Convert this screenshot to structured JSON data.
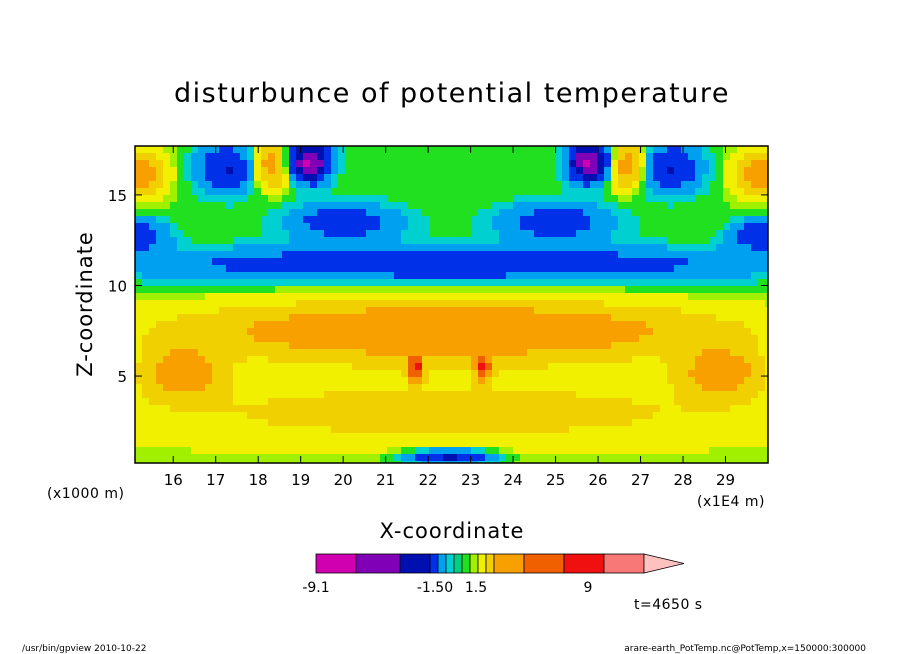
{
  "chart_data": {
    "type": "heatmap",
    "title": "disturbunce of potential temperature",
    "xlabel": "X-coordinate",
    "ylabel": "Z-coordinate",
    "x_unit_left": "(x1000 m)",
    "x_unit_right": "(x1E4 m)",
    "xlim": [
      15.1,
      30
    ],
    "ylim": [
      0.2,
      17.7
    ],
    "xticks": [
      16,
      17,
      18,
      19,
      20,
      21,
      22,
      23,
      24,
      25,
      26,
      27,
      28,
      29
    ],
    "yticks": [
      5,
      10,
      15
    ],
    "time_label": "t=4650 s",
    "colorbar": {
      "colors": [
        "#d000b0",
        "#8000b8",
        "#0010b0",
        "#0030e8",
        "#00a0f0",
        "#00d0d0",
        "#00d080",
        "#20e020",
        "#a0f000",
        "#f0f000",
        "#f0d000",
        "#f8a000",
        "#f06000",
        "#f01010",
        "#f87878",
        "#ffc0c0"
      ],
      "tick_labels": [
        "-9.1",
        "-1.50",
        "1.5",
        "9"
      ]
    },
    "field_levels": [
      {
        "level": 9,
        "color": "#ffc0c0"
      },
      {
        "level": 7,
        "color": "#f87878"
      },
      {
        "level": 5,
        "color": "#f01010"
      },
      {
        "level": 3,
        "color": "#f06000"
      },
      {
        "level": 1.5,
        "color": "#f8a000"
      },
      {
        "level": 0.8,
        "color": "#f0d000"
      },
      {
        "level": 0.3,
        "color": "#f0f000"
      },
      {
        "level": 0.1,
        "color": "#a0f000"
      },
      {
        "level": -0.2,
        "color": "#20e020"
      },
      {
        "level": -0.6,
        "color": "#00d0d0"
      },
      {
        "level": -1.5,
        "color": "#00a0f0"
      },
      {
        "level": -3,
        "color": "#0030e8"
      },
      {
        "level": -5,
        "color": "#0010b0"
      },
      {
        "level": -7,
        "color": "#8000b8"
      },
      {
        "level": -9.1,
        "color": "#d000b0"
      }
    ],
    "features": [
      {
        "name": "central-warm-plume",
        "x": 22.5,
        "z": 7.5,
        "sx": 6.2,
        "sz": 1.6,
        "value": 2.6
      },
      {
        "name": "upper-cold-band",
        "x": 22.5,
        "z": 11.2,
        "sx": 7.5,
        "sz": 0.9,
        "value": -2.8
      },
      {
        "name": "lower-warm-layer",
        "x": 22.5,
        "z": 3.0,
        "sx": 9.0,
        "sz": 2.2,
        "value": 1.0
      },
      {
        "name": "left-warm-cell",
        "x": 16.2,
        "z": 5.2,
        "sx": 0.9,
        "sz": 1.3,
        "value": 2.0
      },
      {
        "name": "right-warm-cell",
        "x": 28.9,
        "z": 5.2,
        "sx": 0.9,
        "sz": 1.3,
        "value": 2.0
      },
      {
        "name": "left-cold-cell-top",
        "x": 17.3,
        "z": 16.5,
        "sx": 0.7,
        "sz": 1.3,
        "value": -3.2
      },
      {
        "name": "right-cold-cell-top",
        "x": 27.7,
        "z": 16.5,
        "sx": 0.7,
        "sz": 1.3,
        "value": -3.2
      },
      {
        "name": "left-purple-cell",
        "x": 19.2,
        "z": 16.8,
        "sx": 0.45,
        "sz": 1.0,
        "value": -7.5
      },
      {
        "name": "right-purple-cell",
        "x": 25.8,
        "z": 16.8,
        "sx": 0.45,
        "sz": 1.0,
        "value": -7.5
      },
      {
        "name": "left-warm-top",
        "x": 18.3,
        "z": 16.6,
        "sx": 0.55,
        "sz": 1.2,
        "value": 2.4
      },
      {
        "name": "right-warm-top",
        "x": 26.7,
        "z": 16.6,
        "sx": 0.55,
        "sz": 1.2,
        "value": 2.4
      },
      {
        "name": "left-edge-warm-top",
        "x": 15.2,
        "z": 16.2,
        "sx": 0.6,
        "sz": 1.2,
        "value": 2.2
      },
      {
        "name": "right-edge-warm-top",
        "x": 29.8,
        "z": 16.2,
        "sx": 0.6,
        "sz": 1.2,
        "value": 2.2
      },
      {
        "name": "left-cold-side",
        "x": 15.1,
        "z": 12.8,
        "sx": 0.7,
        "sz": 0.8,
        "value": -3.0
      },
      {
        "name": "right-cold-side",
        "x": 29.9,
        "z": 12.8,
        "sx": 0.7,
        "sz": 0.8,
        "value": -3.0
      },
      {
        "name": "left-arm-cold",
        "x": 20.0,
        "z": 13.5,
        "sx": 1.3,
        "sz": 1.0,
        "value": -2.5
      },
      {
        "name": "right-arm-cold",
        "x": 25.0,
        "z": 13.5,
        "sx": 1.3,
        "sz": 1.0,
        "value": -2.5
      },
      {
        "name": "central-top-green",
        "x": 22.5,
        "z": 16.5,
        "sx": 1.6,
        "sz": 2.0,
        "value": 0.0
      },
      {
        "name": "left-red-spot",
        "x": 21.7,
        "z": 5.5,
        "sx": 0.15,
        "sz": 0.6,
        "value": 5.5
      },
      {
        "name": "right-red-spot",
        "x": 23.3,
        "z": 5.5,
        "sx": 0.15,
        "sz": 0.6,
        "value": 5.5
      },
      {
        "name": "bottom-cold-spot",
        "x": 22.5,
        "z": 0.5,
        "sx": 1.0,
        "sz": 0.4,
        "value": -3.5
      }
    ]
  },
  "footer": {
    "left_text": "/usr/bin/gpview   2010-10-22",
    "right_text": "arare-earth_PotTemp.nc@PotTemp,x=150000:300000"
  }
}
